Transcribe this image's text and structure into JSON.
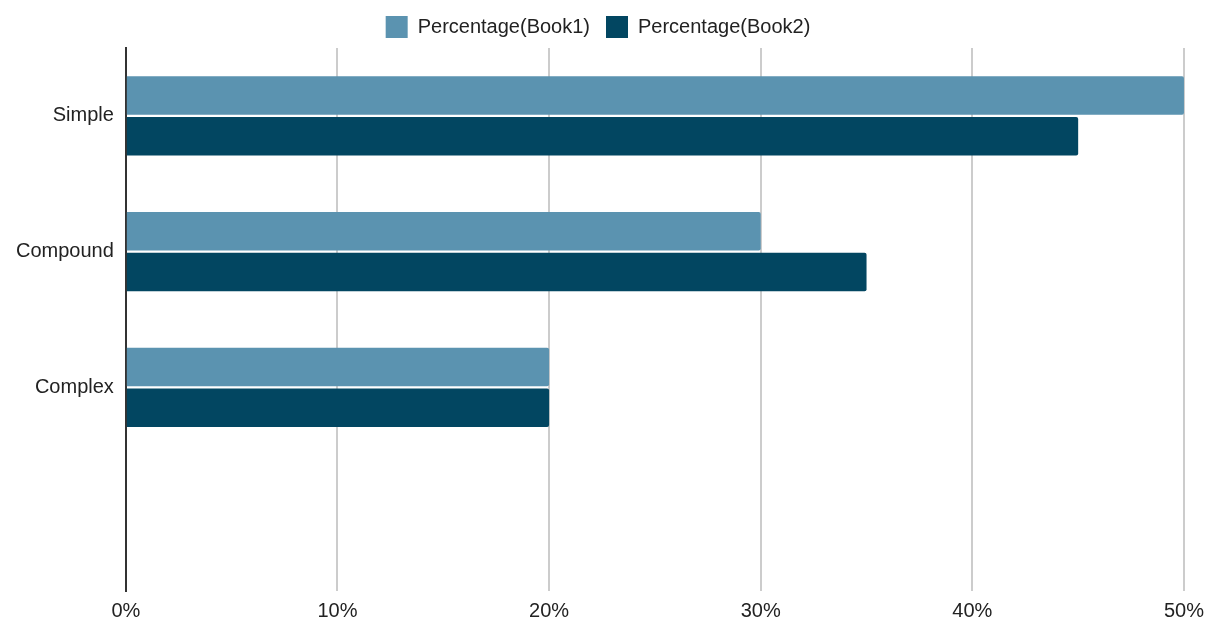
{
  "chart_data": {
    "type": "bar",
    "orientation": "horizontal",
    "categories": [
      "Simple",
      "Compound",
      "Complex",
      null
    ],
    "series": [
      {
        "name": "Percentage(Book1)",
        "color": "#5b93b0",
        "values": [
          50,
          30,
          20,
          null
        ]
      },
      {
        "name": "Percentage(Book2)",
        "color": "#024661",
        "values": [
          45,
          35,
          20,
          null
        ]
      }
    ],
    "xlim": [
      0,
      50
    ],
    "xticks": [
      {
        "value": 0,
        "label": "0%"
      },
      {
        "value": 10,
        "label": "10%"
      },
      {
        "value": 20,
        "label": "20%"
      },
      {
        "value": 30,
        "label": "30%"
      },
      {
        "value": 40,
        "label": "40%"
      },
      {
        "value": 50,
        "label": "50%"
      }
    ],
    "grid": "x",
    "legend": "top"
  }
}
